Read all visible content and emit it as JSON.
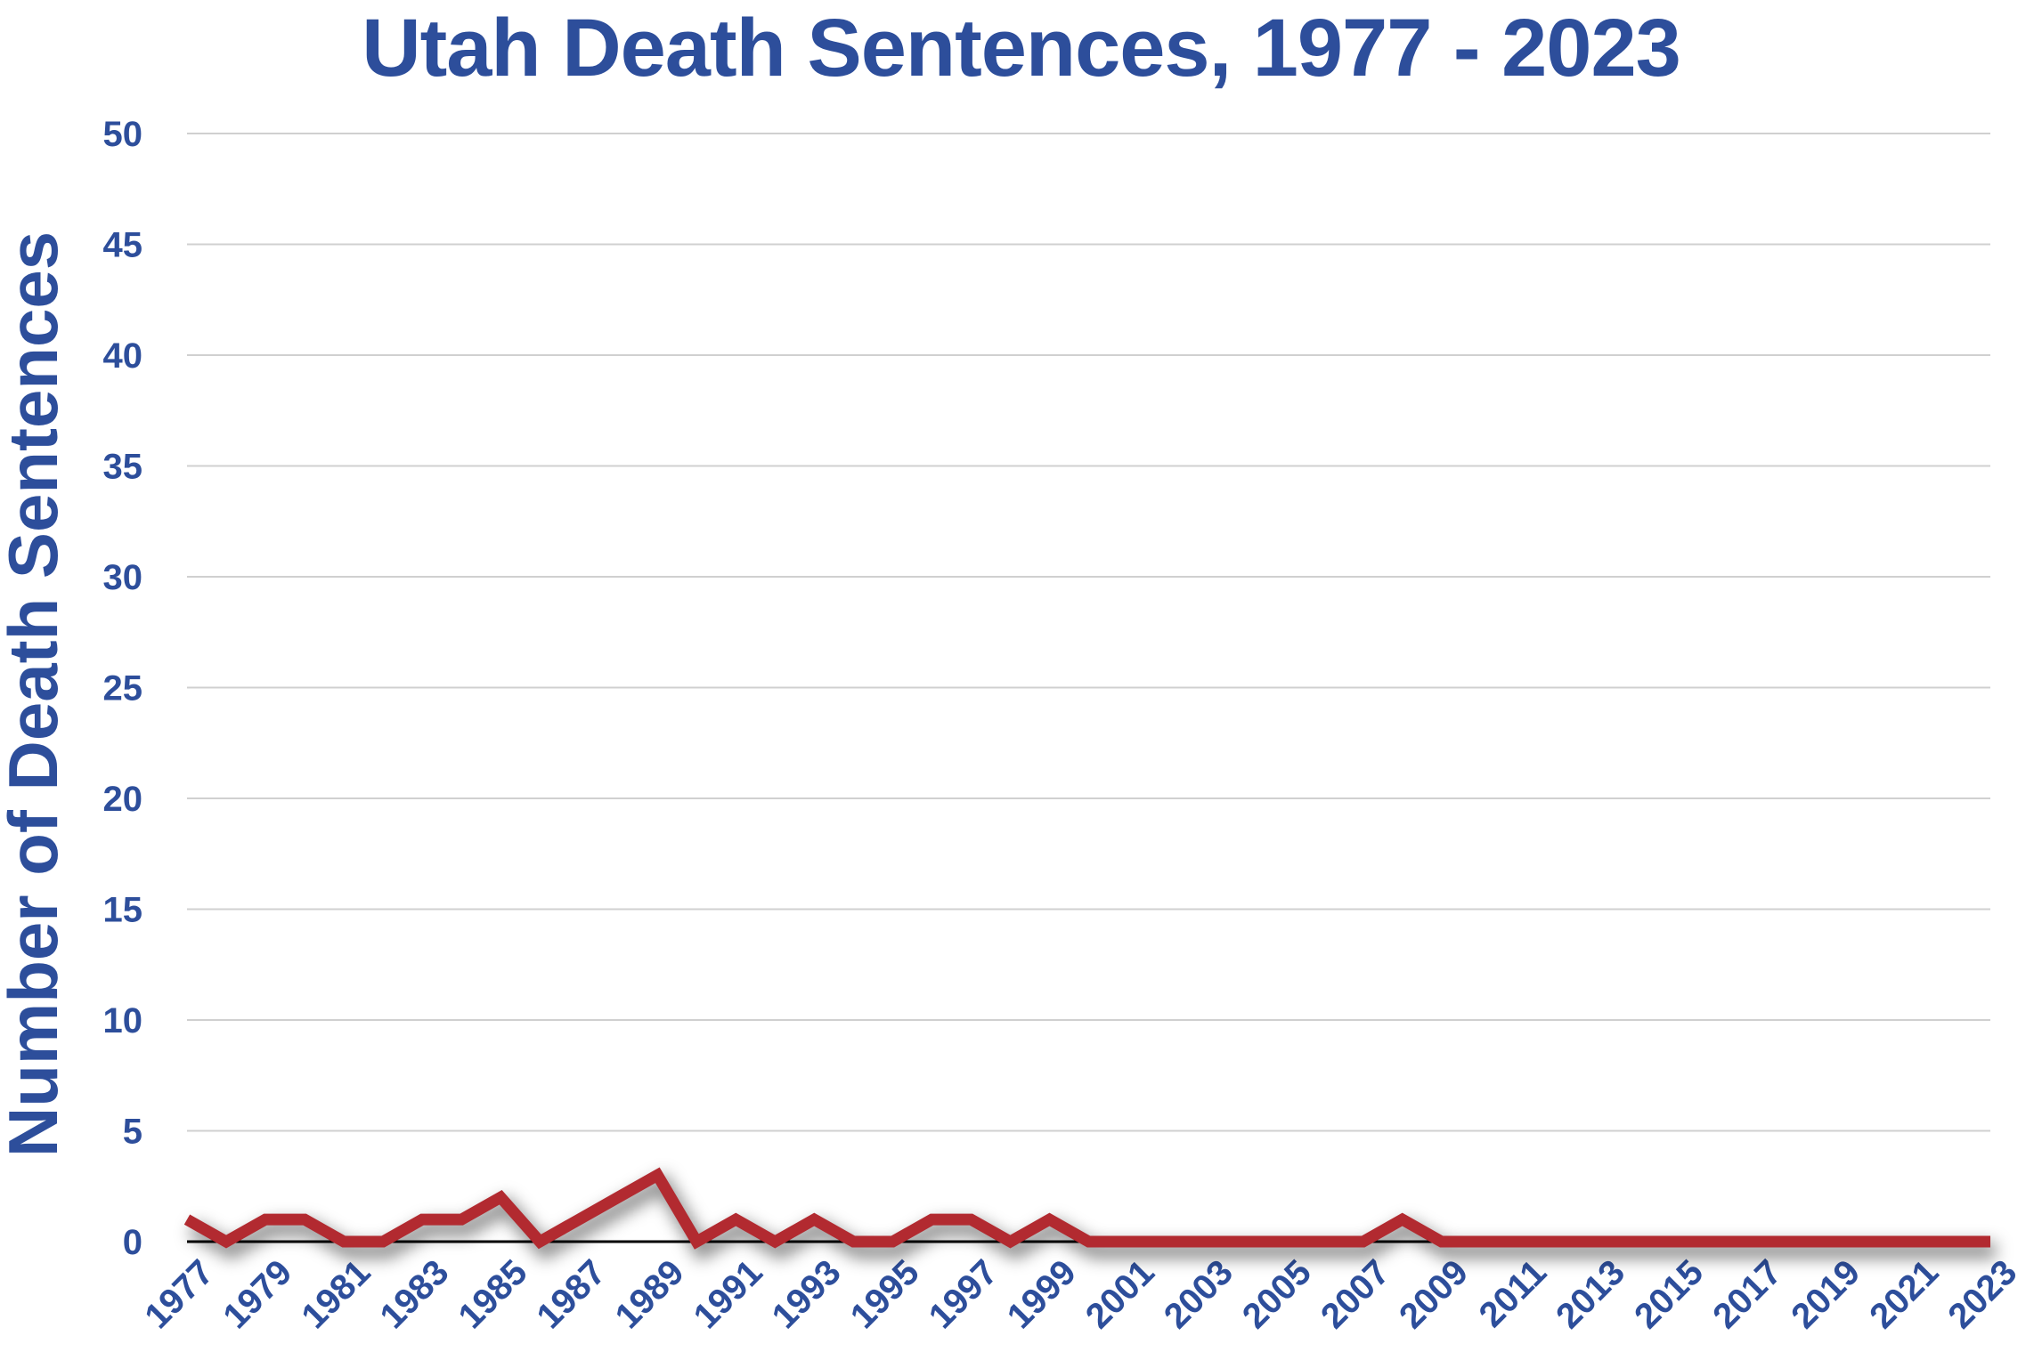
{
  "chart_data": {
    "type": "line",
    "title": "Utah Death Sentences, 1977 - 2023",
    "xlabel": "",
    "ylabel": "Number of Death Sentences",
    "ylim": [
      0,
      50
    ],
    "y_ticks": [
      0,
      5,
      10,
      15,
      20,
      25,
      30,
      35,
      40,
      45,
      50
    ],
    "x_tick_labels": [
      "1977",
      "1979",
      "1981",
      "1983",
      "1985",
      "1987",
      "1989",
      "1991",
      "1993",
      "1995",
      "1997",
      "1999",
      "2001",
      "2003",
      "2005",
      "2007",
      "2009",
      "2011",
      "2013",
      "2015",
      "2017",
      "2019",
      "2021",
      "2023"
    ],
    "grid": true,
    "colors": {
      "line": "#b22a30",
      "text": "#2d4e9b",
      "grid": "#d0d0d0",
      "axis": "#000000"
    },
    "x": [
      1977,
      1978,
      1979,
      1980,
      1981,
      1982,
      1983,
      1984,
      1985,
      1986,
      1987,
      1988,
      1989,
      1990,
      1991,
      1992,
      1993,
      1994,
      1995,
      1996,
      1997,
      1998,
      1999,
      2000,
      2001,
      2002,
      2003,
      2004,
      2005,
      2006,
      2007,
      2008,
      2009,
      2010,
      2011,
      2012,
      2013,
      2014,
      2015,
      2016,
      2017,
      2018,
      2019,
      2020,
      2021,
      2022,
      2023
    ],
    "values": [
      1,
      0,
      1,
      1,
      0,
      0,
      1,
      1,
      2,
      0,
      1,
      2,
      3,
      0,
      1,
      0,
      1,
      0,
      0,
      1,
      1,
      0,
      1,
      0,
      0,
      0,
      0,
      0,
      0,
      0,
      0,
      1,
      0,
      0,
      0,
      0,
      0,
      0,
      0,
      0,
      0,
      0,
      0,
      0,
      0,
      0,
      0
    ]
  }
}
